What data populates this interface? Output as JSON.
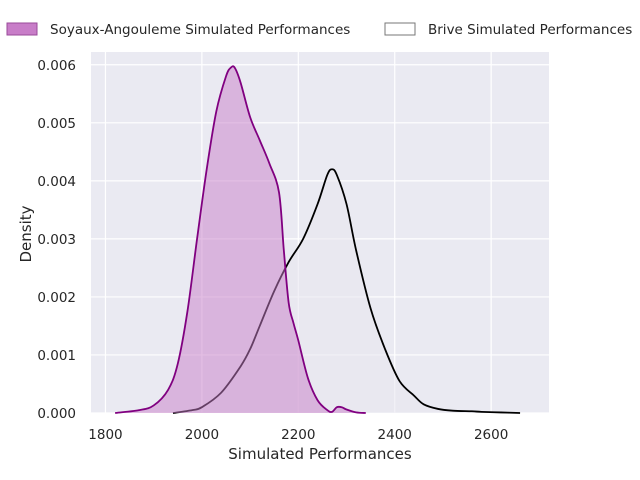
{
  "chart_data": {
    "type": "area",
    "title": "",
    "xlabel": "Simulated Performances",
    "ylabel": "Density",
    "xlim": [
      1770,
      2720
    ],
    "ylim": [
      0,
      0.00622
    ],
    "x_ticks": [
      1800,
      2000,
      2200,
      2400,
      2600
    ],
    "y_ticks": [
      0.0,
      0.001,
      0.002,
      0.003,
      0.004,
      0.005,
      0.006
    ],
    "x_tick_labels": [
      "1800",
      "2000",
      "2200",
      "2400",
      "2600"
    ],
    "y_tick_labels": [
      "0.000",
      "0.001",
      "0.002",
      "0.003",
      "0.004",
      "0.005",
      "0.006"
    ],
    "grid": true,
    "legend_position": "top (above plot)",
    "series": [
      {
        "name": "Soyaux-Angouleme Simulated Performances",
        "color": "#800080",
        "fill_color": "#c87dc8",
        "filled": true,
        "x": [
          1820,
          1870,
          1900,
          1930,
          1950,
          1970,
          1990,
          2010,
          2030,
          2050,
          2060,
          2068,
          2080,
          2100,
          2120,
          2140,
          2160,
          2170,
          2180,
          2190,
          2200,
          2220,
          2240,
          2260,
          2270,
          2280,
          2290,
          2300,
          2320,
          2340
        ],
        "y": [
          0.0,
          5e-05,
          0.00013,
          0.0004,
          0.00085,
          0.00175,
          0.003,
          0.0042,
          0.0052,
          0.0058,
          0.00595,
          0.00595,
          0.0057,
          0.0051,
          0.0047,
          0.0043,
          0.0038,
          0.0028,
          0.0019,
          0.00155,
          0.00125,
          0.0006,
          0.00022,
          5e-05,
          2e-05,
          0.0001,
          0.0001,
          6e-05,
          1e-05,
          0.0
        ]
      },
      {
        "name": "Brive Simulated Performances",
        "color": "#000000",
        "fill_color": "#e8e5ee",
        "filled": true,
        "x": [
          1940,
          1980,
          2000,
          2040,
          2080,
          2100,
          2120,
          2150,
          2180,
          2210,
          2240,
          2260,
          2270,
          2280,
          2300,
          2320,
          2350,
          2380,
          2410,
          2440,
          2460,
          2490,
          2520,
          2560,
          2580,
          2620,
          2660
        ],
        "y": [
          0.0,
          5e-05,
          0.0001,
          0.00035,
          0.0008,
          0.0011,
          0.0015,
          0.0021,
          0.0026,
          0.003,
          0.0036,
          0.0041,
          0.0042,
          0.0041,
          0.0036,
          0.0028,
          0.0018,
          0.0011,
          0.00055,
          0.0003,
          0.00015,
          7e-05,
          4e-05,
          3e-05,
          2e-05,
          1e-05,
          0.0
        ]
      }
    ]
  }
}
